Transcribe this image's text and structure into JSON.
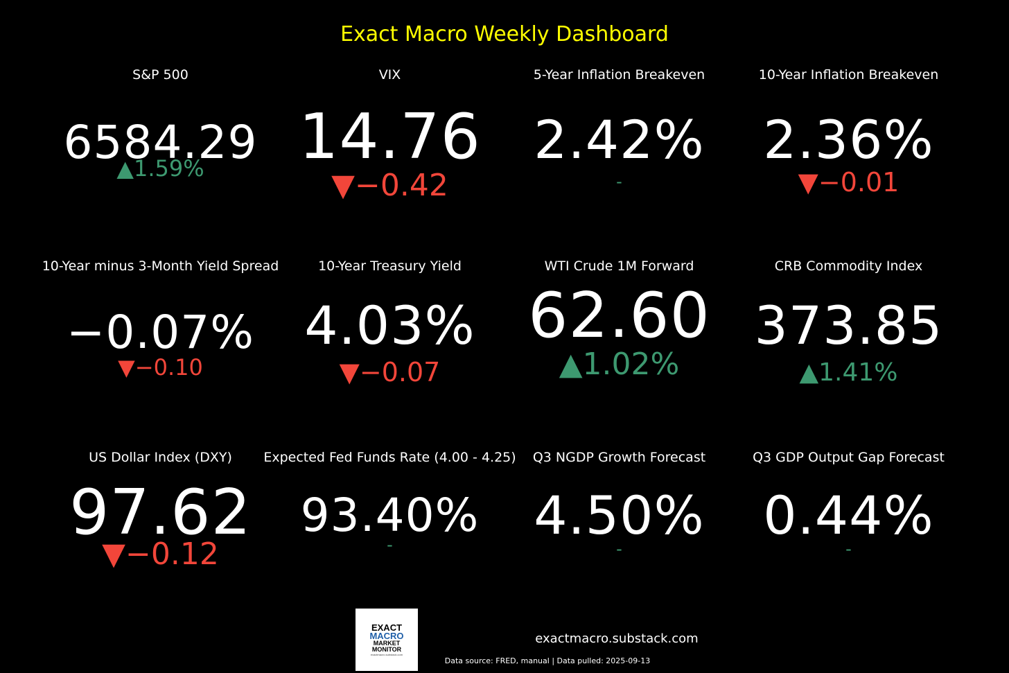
{
  "title": "Exact Macro Weekly Dashboard",
  "colors": {
    "title": "#ffff00",
    "up": "#3d9970",
    "down": "#f2463a",
    "value": "#ffffff",
    "background": "#000000"
  },
  "metrics": [
    {
      "label": "S&P 500",
      "value": "6584.29",
      "change": "▲1.59%",
      "direction": "up"
    },
    {
      "label": "VIX",
      "value": "14.76",
      "change": "▼−0.42",
      "direction": "down"
    },
    {
      "label": "5-Year Inflation Breakeven",
      "value": "2.42%",
      "change": "-",
      "direction": "flat"
    },
    {
      "label": "10-Year Inflation Breakeven",
      "value": "2.36%",
      "change": "▼−0.01",
      "direction": "down"
    },
    {
      "label": "10-Year minus 3-Month Yield Spread",
      "value": "−0.07%",
      "change": "▼−0.10",
      "direction": "down"
    },
    {
      "label": "10-Year Treasury Yield",
      "value": "4.03%",
      "change": "▼−0.07",
      "direction": "down"
    },
    {
      "label": "WTI Crude 1M Forward",
      "value": "62.60",
      "change": "▲1.02%",
      "direction": "up"
    },
    {
      "label": "CRB Commodity Index",
      "value": "373.85",
      "change": "▲1.41%",
      "direction": "up"
    },
    {
      "label": "US Dollar Index (DXY)",
      "value": "97.62",
      "change": "▼−0.12",
      "direction": "down"
    },
    {
      "label": "Expected Fed Funds Rate (4.00 - 4.25)",
      "value": "93.40%",
      "change": "-",
      "direction": "flat"
    },
    {
      "label": "Q3 NGDP Growth Forecast",
      "value": "4.50%",
      "change": "-",
      "direction": "flat"
    },
    {
      "label": "Q3 GDP Output Gap Forecast",
      "value": "0.44%",
      "change": "-",
      "direction": "flat"
    }
  ],
  "logo": {
    "line1": "EXACT",
    "line2": "MACRO",
    "line3": "MARKET",
    "line4": "MONITOR",
    "line5": "exactmacro.substack.com"
  },
  "footer": {
    "site": "exactmacro.substack.com",
    "source": "Data source: FRED, manual | Data pulled: 2025-09-13"
  }
}
